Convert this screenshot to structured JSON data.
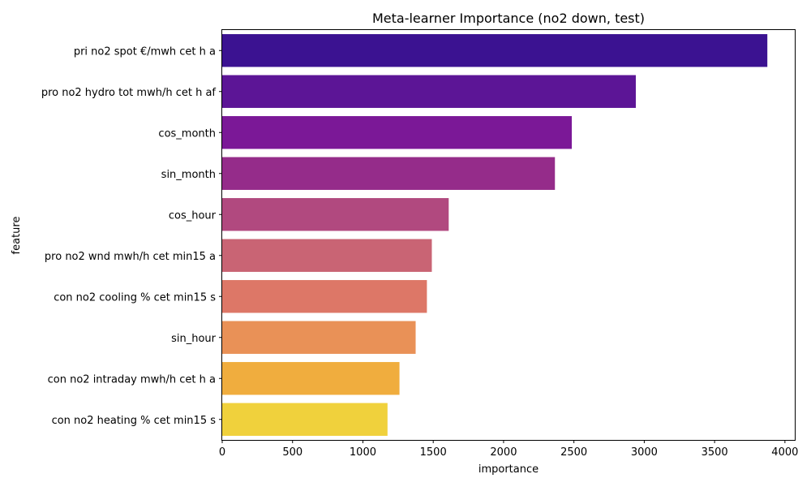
{
  "chart_data": {
    "type": "bar",
    "orientation": "horizontal",
    "title": "Meta-learner Importance (no2 down, test)",
    "xlabel": "importance",
    "ylabel": "feature",
    "xlim": [
      0,
      4070
    ],
    "xticks": [
      0,
      500,
      1000,
      1500,
      2000,
      2500,
      3000,
      3500,
      4000
    ],
    "grid": false,
    "categories": [
      "pri no2 spot €/mwh cet h a",
      "pro no2 hydro tot mwh/h cet h af",
      "cos_month",
      "sin_month",
      "cos_hour",
      "pro no2 wnd mwh/h cet min15 a",
      "con no2 cooling % cet min15 s",
      "sin_hour",
      "con no2 intraday mwh/h cet h a",
      "con no2 heating % cet min15 s"
    ],
    "values": [
      3875,
      2940,
      2485,
      2365,
      1610,
      1490,
      1455,
      1375,
      1260,
      1175
    ],
    "colors": [
      "#3b1291",
      "#5c1596",
      "#7b1897",
      "#952c8a",
      "#b1497f",
      "#c96474",
      "#dd7767",
      "#e99157",
      "#f0ad3e",
      "#f0d13c"
    ]
  }
}
